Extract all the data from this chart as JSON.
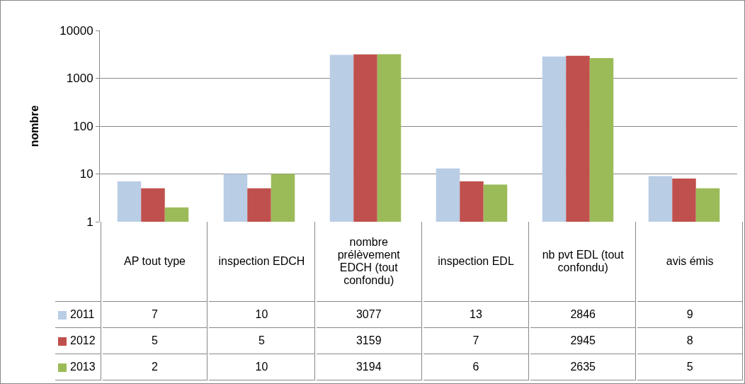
{
  "chart_data": {
    "type": "bar",
    "ylabel": "nombre",
    "categories": [
      "AP tout type",
      "inspection EDCH",
      "nombre prélèvement EDCH (tout confondu)",
      "inspection EDL",
      "nb pvt EDL (tout confondu)",
      "avis émis"
    ],
    "series": [
      {
        "name": "2011",
        "color": "#b9cde5",
        "values": [
          7,
          10,
          3077,
          13,
          2846,
          9
        ]
      },
      {
        "name": "2012",
        "color": "#c0504d",
        "values": [
          5,
          5,
          3159,
          7,
          2945,
          8
        ]
      },
      {
        "name": "2013",
        "color": "#9bbb59",
        "values": [
          2,
          10,
          3194,
          6,
          2635,
          5
        ]
      }
    ],
    "log": "y",
    "ylim": [
      1,
      10000
    ],
    "yticks": [
      1,
      10,
      100,
      1000,
      10000
    ],
    "grid": "y",
    "legend": "bottom",
    "data_labels": true
  }
}
